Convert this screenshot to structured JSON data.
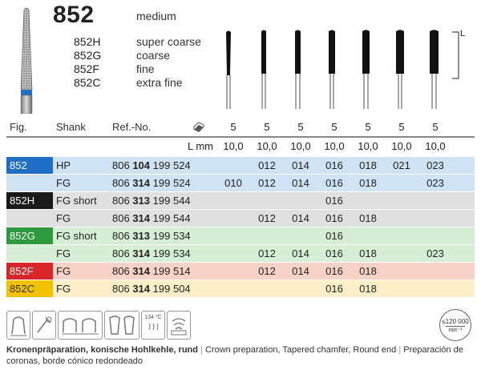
{
  "header": {
    "title": "852",
    "subtitle": "medium",
    "variants": [
      {
        "code": "852H",
        "desc": "super coarse"
      },
      {
        "code": "852G",
        "desc": "coarse"
      },
      {
        "code": "852F",
        "desc": "fine"
      },
      {
        "code": "852C",
        "desc": "extra fine"
      }
    ]
  },
  "table": {
    "columns": {
      "fig": "Fig.",
      "shank": "Shank",
      "ref": "Ref.-No."
    },
    "pack_values": [
      "5",
      "5",
      "5",
      "5",
      "5",
      "5",
      "5"
    ],
    "lmm_label": "L mm",
    "lmm_values": [
      "10,0",
      "10,0",
      "10,0",
      "10,0",
      "10,0",
      "10,0",
      "10,0"
    ],
    "rows": [
      {
        "fig": "852",
        "shank": "HP",
        "ref_a": "806",
        "ref_b": "104",
        "ref_c": "199 524",
        "sizes": [
          "",
          "012",
          "014",
          "016",
          "018",
          "021",
          "023"
        ],
        "bg": "#cfe3f4",
        "figbg": "#1f6fc7",
        "figcolor": "#ffffff"
      },
      {
        "fig": "",
        "shank": "FG",
        "ref_a": "806",
        "ref_b": "314",
        "ref_c": "199 524",
        "sizes": [
          "010",
          "012",
          "014",
          "016",
          "018",
          "",
          "023"
        ],
        "bg": "#cfe3f4",
        "figbg": "",
        "figcolor": ""
      },
      {
        "fig": "852H",
        "shank": "FG short",
        "ref_a": "806",
        "ref_b": "313",
        "ref_c": "199 544",
        "sizes": [
          "",
          "",
          "",
          "016",
          "",
          "",
          ""
        ],
        "bg": "#e0e0e0",
        "figbg": "#1a1a1a",
        "figcolor": "#ffffff"
      },
      {
        "fig": "",
        "shank": "FG",
        "ref_a": "806",
        "ref_b": "314",
        "ref_c": "199 544",
        "sizes": [
          "",
          "012",
          "014",
          "016",
          "018",
          "",
          ""
        ],
        "bg": "#e0e0e0",
        "figbg": "",
        "figcolor": ""
      },
      {
        "fig": "852G",
        "shank": "FG short",
        "ref_a": "806",
        "ref_b": "313",
        "ref_c": "199 534",
        "sizes": [
          "",
          "",
          "",
          "016",
          "",
          "",
          ""
        ],
        "bg": "#d6eed6",
        "figbg": "#2e9a3e",
        "figcolor": "#ffffff"
      },
      {
        "fig": "",
        "shank": "FG",
        "ref_a": "806",
        "ref_b": "314",
        "ref_c": "199 534",
        "sizes": [
          "",
          "012",
          "014",
          "016",
          "018",
          "",
          "023"
        ],
        "bg": "#d6eed6",
        "figbg": "",
        "figcolor": ""
      },
      {
        "fig": "852F",
        "shank": "FG",
        "ref_a": "806",
        "ref_b": "314",
        "ref_c": "199 514",
        "sizes": [
          "",
          "012",
          "014",
          "016",
          "018",
          "",
          ""
        ],
        "bg": "#f8d2c6",
        "figbg": "#d8262a",
        "figcolor": "#ffffff"
      },
      {
        "fig": "852C",
        "shank": "FG",
        "ref_a": "806",
        "ref_b": "314",
        "ref_c": "199 504",
        "sizes": [
          "",
          "",
          "",
          "016",
          "018",
          "",
          ""
        ],
        "bg": "#fdf0c8",
        "figbg": "#f2c200",
        "figcolor": "#333333"
      }
    ]
  },
  "icons": {
    "sterilize": "134 °C",
    "speed_max": "≤120 000",
    "speed_unit": "min⁻¹",
    "L_marker": "L"
  },
  "footer": {
    "german": "Kronenpräparation, konische Hohlkehle, rund",
    "english": "Crown preparation, Tapered chamfer, Round end",
    "spanish": "Preparación de coronas, borde cónico redondeado",
    "sep": "|"
  }
}
